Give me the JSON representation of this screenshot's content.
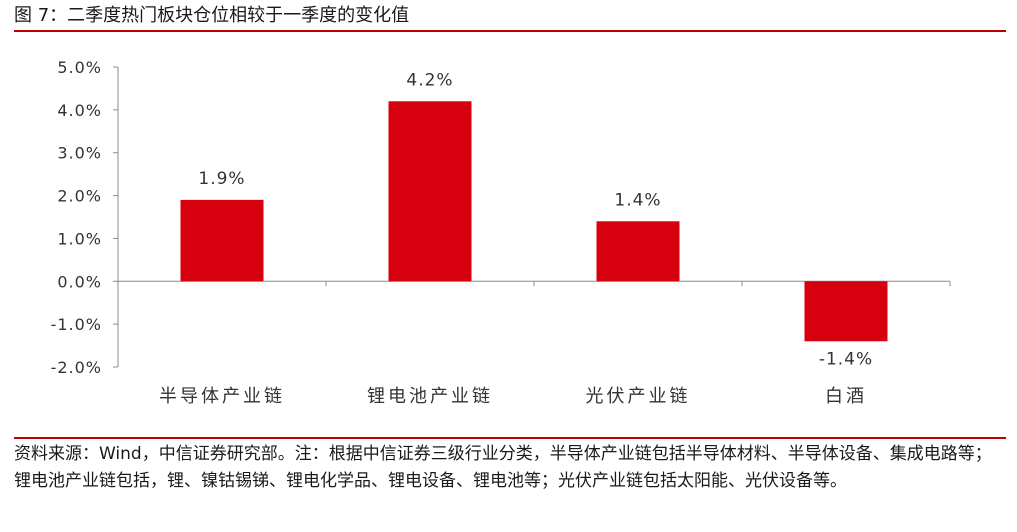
{
  "title": "图 7：二季度热门板块仓位相较于一季度的变化值",
  "note": "资料来源：Wind，中信证券研究部。注：根据中信证券三级行业分类，半导体产业链包括半导体材料、半导体设备、集成电路等；锂电池产业链包括，锂、镍钴锡锑、锂电化学品、锂电设备、锂电池等；光伏产业链包括太阳能、光伏设备等。",
  "colors": {
    "bar": "#d7000f",
    "rule": "#c00000"
  },
  "chart_data": {
    "type": "bar",
    "categories": [
      "半导体产业链",
      "锂电池产业链",
      "光伏产业链",
      "白酒"
    ],
    "values": [
      1.9,
      4.2,
      1.4,
      -1.4
    ],
    "data_labels": [
      "1.9%",
      "4.2%",
      "1.4%",
      "-1.4%"
    ],
    "yticks": [
      "-2.0%",
      "-1.0%",
      "0.0%",
      "1.0%",
      "2.0%",
      "3.0%",
      "4.0%",
      "5.0%"
    ],
    "ylim": [
      -2,
      5
    ],
    "unit": "%",
    "grid": false,
    "legend": "none"
  }
}
